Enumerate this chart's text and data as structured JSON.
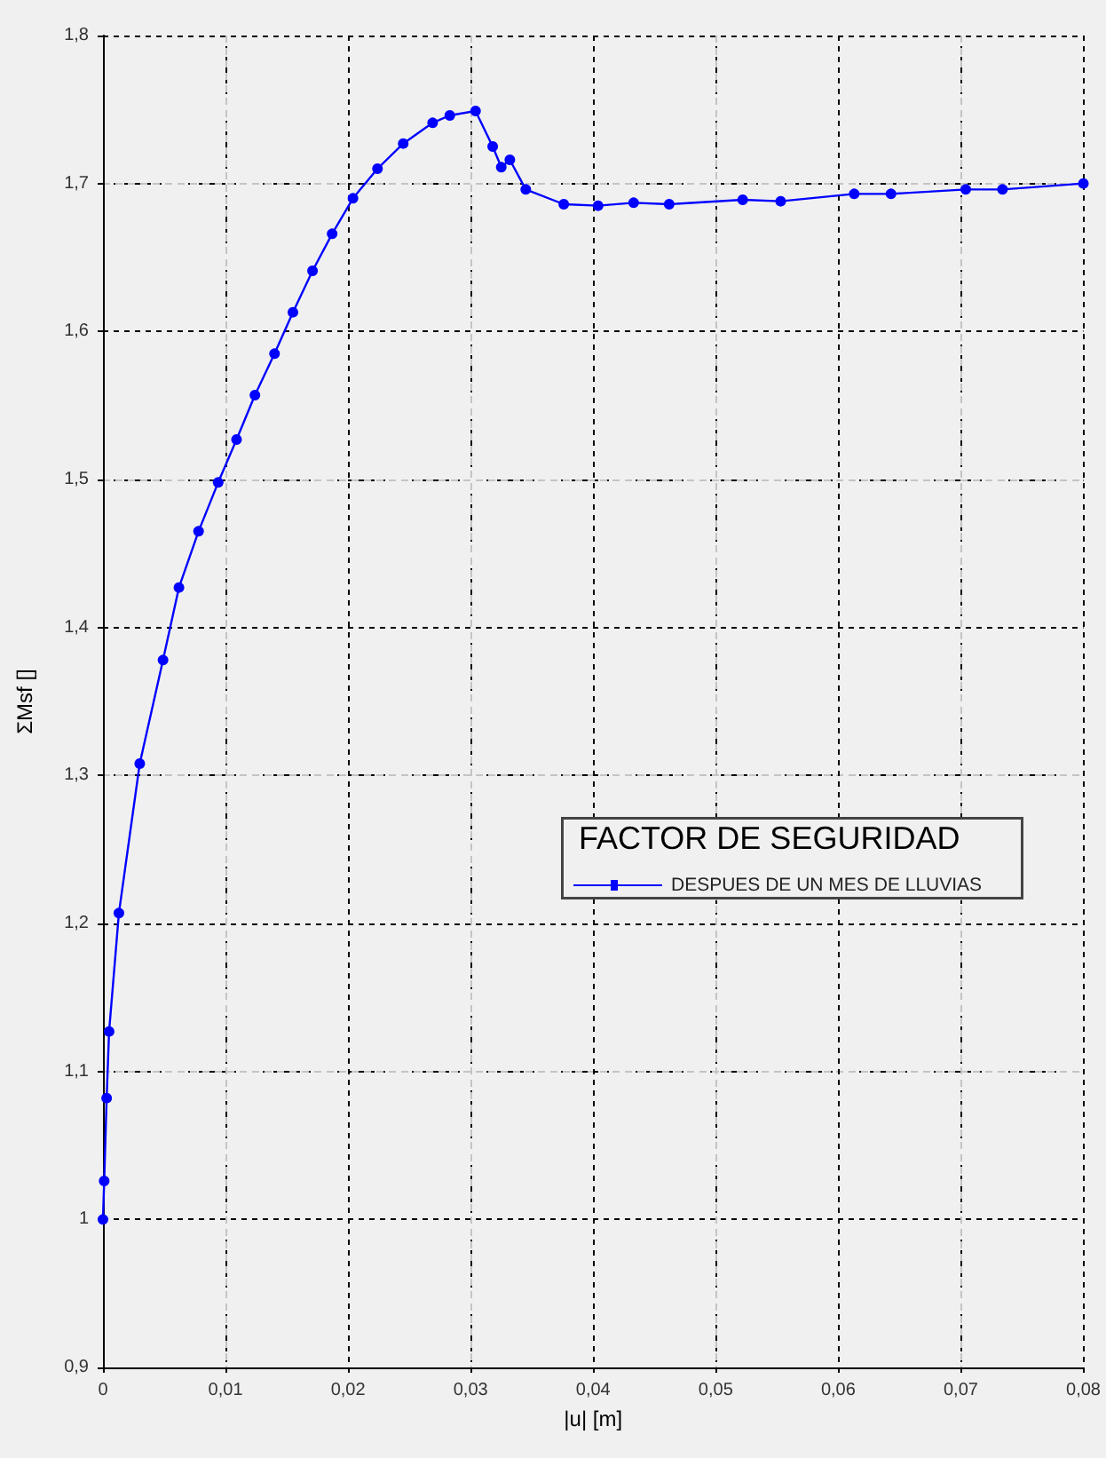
{
  "chart_data": {
    "type": "line",
    "xlabel": "|u| [m]",
    "ylabel": "ΣMsf []",
    "legend_title": "FACTOR DE SEGURIDAD",
    "series": [
      {
        "name": "DESPUES DE UN MES DE LLUVIAS",
        "color": "#0000ff",
        "x": [
          0,
          0.0001,
          0.0003,
          0.0005,
          0.0013,
          0.003,
          0.0049,
          0.0062,
          0.0078,
          0.0094,
          0.0109,
          0.0124,
          0.014,
          0.0155,
          0.0171,
          0.0187,
          0.0204,
          0.0224,
          0.0245,
          0.0269,
          0.0283,
          0.0304,
          0.0318,
          0.0325,
          0.0332,
          0.0345,
          0.0376,
          0.0404,
          0.0433,
          0.0462,
          0.0522,
          0.0553,
          0.0613,
          0.0643,
          0.0704,
          0.0734,
          0.08
        ],
        "values": [
          1.0,
          1.026,
          1.082,
          1.127,
          1.207,
          1.308,
          1.378,
          1.427,
          1.465,
          1.498,
          1.527,
          1.557,
          1.585,
          1.613,
          1.641,
          1.666,
          1.69,
          1.71,
          1.727,
          1.741,
          1.746,
          1.749,
          1.725,
          1.711,
          1.716,
          1.696,
          1.686,
          1.685,
          1.687,
          1.686,
          1.689,
          1.688,
          1.693,
          1.693,
          1.696,
          1.696,
          1.7
        ]
      }
    ],
    "xlim": [
      0,
      0.08
    ],
    "xticks": [
      {
        "value": 0,
        "label": "0"
      },
      {
        "value": 0.01,
        "label": "0,01"
      },
      {
        "value": 0.02,
        "label": "0,02"
      },
      {
        "value": 0.03,
        "label": "0,03"
      },
      {
        "value": 0.04,
        "label": "0,04"
      },
      {
        "value": 0.05,
        "label": "0,05"
      },
      {
        "value": 0.06,
        "label": "0,06"
      },
      {
        "value": 0.07,
        "label": "0,07"
      },
      {
        "value": 0.08,
        "label": "0,08"
      }
    ],
    "ylim": [
      0.9,
      1.8
    ],
    "yticks": [
      {
        "value": 0.9,
        "label": "0,9"
      },
      1,
      {
        "value": 1.1,
        "label": "1,1"
      },
      {
        "value": 1.2,
        "label": "1,2"
      },
      {
        "value": 1.3,
        "label": "1,3"
      },
      {
        "value": 1.4,
        "label": "1,4"
      },
      {
        "value": 1.5,
        "label": "1,5"
      },
      {
        "value": 1.6,
        "label": "1,6"
      },
      {
        "value": 1.7,
        "label": "1,7"
      },
      {
        "value": 1.8,
        "label": "1,8"
      }
    ],
    "grid": true,
    "legend": "right",
    "marker": "circle",
    "line_style": "solid"
  }
}
